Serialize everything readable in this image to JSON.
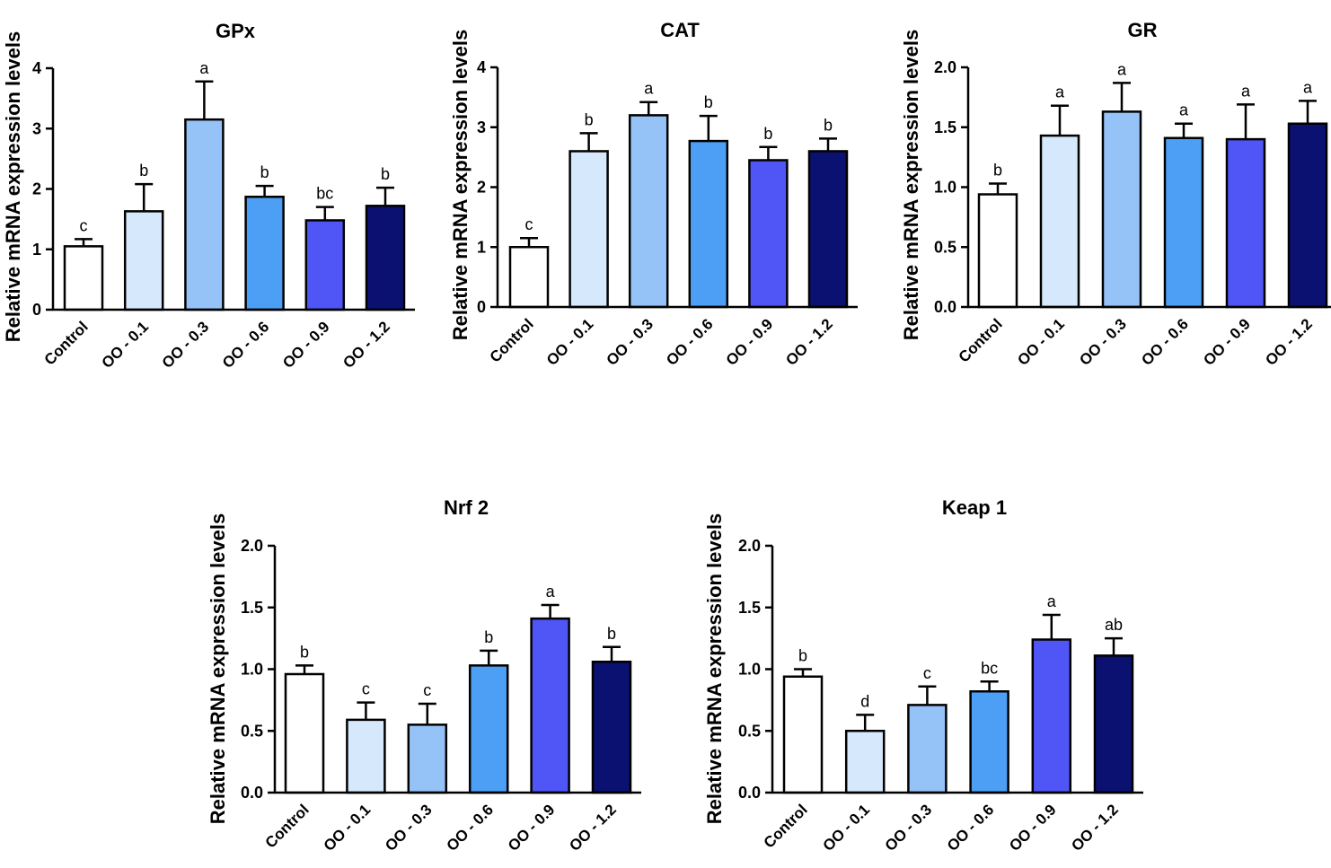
{
  "figure": {
    "ylabel": "Relative mRNA expression levels",
    "categories": [
      "Control",
      "OO - 0.1",
      "OO - 0.3",
      "OO - 0.6",
      "OO - 0.9",
      "OO - 1.2"
    ],
    "bar_colors": [
      "#ffffff",
      "#d6e8fc",
      "#96c3f7",
      "#4d9ff5",
      "#4f56f5",
      "#0a1170"
    ]
  },
  "chart_data": [
    {
      "type": "bar",
      "title": "GPx",
      "ylabel": "Relative mRNA expression levels",
      "categories": [
        "Control",
        "OO - 0.1",
        "OO - 0.3",
        "OO - 0.6",
        "OO - 0.9",
        "OO - 1.2"
      ],
      "values": [
        1.05,
        1.63,
        3.15,
        1.87,
        1.48,
        1.72
      ],
      "errors": [
        0.12,
        0.45,
        0.63,
        0.18,
        0.22,
        0.3
      ],
      "letters": [
        "c",
        "b",
        "a",
        "b",
        "bc",
        "b"
      ],
      "ylim": [
        0,
        4
      ],
      "yticks": [
        "0",
        "1",
        "2",
        "3",
        "4"
      ]
    },
    {
      "type": "bar",
      "title": "CAT",
      "ylabel": "Relative mRNA expression levels",
      "categories": [
        "Control",
        "OO - 0.1",
        "OO - 0.3",
        "OO - 0.6",
        "OO - 0.9",
        "OO - 1.2"
      ],
      "values": [
        1.0,
        2.6,
        3.2,
        2.77,
        2.45,
        2.6
      ],
      "errors": [
        0.15,
        0.3,
        0.22,
        0.42,
        0.22,
        0.21
      ],
      "letters": [
        "c",
        "b",
        "a",
        "b",
        "b",
        "b"
      ],
      "ylim": [
        0,
        4
      ],
      "yticks": [
        "0",
        "1",
        "2",
        "3",
        "4"
      ]
    },
    {
      "type": "bar",
      "title": "GR",
      "ylabel": "Relative mRNA expression levels",
      "categories": [
        "Control",
        "OO - 0.1",
        "OO - 0.3",
        "OO - 0.6",
        "OO - 0.9",
        "OO - 1.2"
      ],
      "values": [
        0.94,
        1.43,
        1.63,
        1.41,
        1.4,
        1.53
      ],
      "errors": [
        0.09,
        0.25,
        0.24,
        0.12,
        0.29,
        0.19
      ],
      "letters": [
        "b",
        "a",
        "a",
        "a",
        "a",
        "a"
      ],
      "ylim": [
        0,
        2
      ],
      "yticks": [
        "0.0",
        "0.5",
        "1.0",
        "1.5",
        "2.0"
      ]
    },
    {
      "type": "bar",
      "title": "Nrf 2",
      "ylabel": "Relative mRNA expression levels",
      "categories": [
        "Control",
        "OO - 0.1",
        "OO - 0.3",
        "OO - 0.6",
        "OO - 0.9",
        "OO - 1.2"
      ],
      "values": [
        0.96,
        0.59,
        0.55,
        1.03,
        1.41,
        1.06
      ],
      "errors": [
        0.07,
        0.14,
        0.17,
        0.12,
        0.11,
        0.12
      ],
      "letters": [
        "b",
        "c",
        "c",
        "b",
        "a",
        "b"
      ],
      "ylim": [
        0,
        2
      ],
      "yticks": [
        "0.0",
        "0.5",
        "1.0",
        "1.5",
        "2.0"
      ]
    },
    {
      "type": "bar",
      "title": "Keap 1",
      "ylabel": "Relative mRNA expression levels",
      "categories": [
        "Control",
        "OO - 0.1",
        "OO - 0.3",
        "OO - 0.6",
        "OO - 0.9",
        "OO - 1.2"
      ],
      "values": [
        0.94,
        0.5,
        0.71,
        0.82,
        1.24,
        1.11
      ],
      "errors": [
        0.06,
        0.13,
        0.15,
        0.08,
        0.2,
        0.14
      ],
      "letters": [
        "b",
        "d",
        "c",
        "bc",
        "a",
        "ab"
      ],
      "ylim": [
        0,
        2
      ],
      "yticks": [
        "0.0",
        "0.5",
        "1.0",
        "1.5",
        "2.0"
      ]
    }
  ]
}
